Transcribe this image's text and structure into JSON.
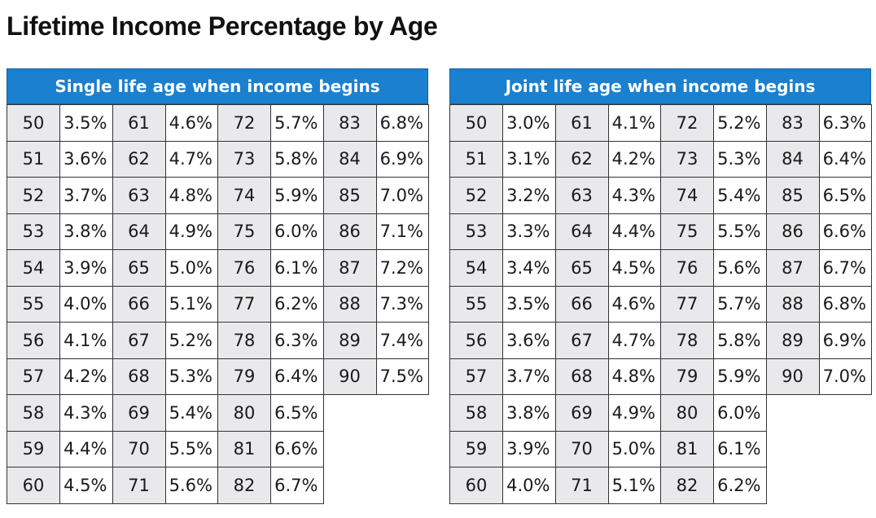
{
  "title": "Lifetime Income Percentage by Age",
  "tables": [
    {
      "header": "Single life age when income begins",
      "rows": [
        [
          [
            "50",
            "3.5%"
          ],
          [
            "61",
            "4.6%"
          ],
          [
            "72",
            "5.7%"
          ],
          [
            "83",
            "6.8%"
          ]
        ],
        [
          [
            "51",
            "3.6%"
          ],
          [
            "62",
            "4.7%"
          ],
          [
            "73",
            "5.8%"
          ],
          [
            "84",
            "6.9%"
          ]
        ],
        [
          [
            "52",
            "3.7%"
          ],
          [
            "63",
            "4.8%"
          ],
          [
            "74",
            "5.9%"
          ],
          [
            "85",
            "7.0%"
          ]
        ],
        [
          [
            "53",
            "3.8%"
          ],
          [
            "64",
            "4.9%"
          ],
          [
            "75",
            "6.0%"
          ],
          [
            "86",
            "7.1%"
          ]
        ],
        [
          [
            "54",
            "3.9%"
          ],
          [
            "65",
            "5.0%"
          ],
          [
            "76",
            "6.1%"
          ],
          [
            "87",
            "7.2%"
          ]
        ],
        [
          [
            "55",
            "4.0%"
          ],
          [
            "66",
            "5.1%"
          ],
          [
            "77",
            "6.2%"
          ],
          [
            "88",
            "7.3%"
          ]
        ],
        [
          [
            "56",
            "4.1%"
          ],
          [
            "67",
            "5.2%"
          ],
          [
            "78",
            "6.3%"
          ],
          [
            "89",
            "7.4%"
          ]
        ],
        [
          [
            "57",
            "4.2%"
          ],
          [
            "68",
            "5.3%"
          ],
          [
            "79",
            "6.4%"
          ],
          [
            "90",
            "7.5%"
          ]
        ],
        [
          [
            "58",
            "4.3%"
          ],
          [
            "69",
            "5.4%"
          ],
          [
            "80",
            "6.5%"
          ]
        ],
        [
          [
            "59",
            "4.4%"
          ],
          [
            "70",
            "5.5%"
          ],
          [
            "81",
            "6.6%"
          ]
        ],
        [
          [
            "60",
            "4.5%"
          ],
          [
            "71",
            "5.6%"
          ],
          [
            "82",
            "6.7%"
          ]
        ]
      ]
    },
    {
      "header": "Joint life age when income begins",
      "rows": [
        [
          [
            "50",
            "3.0%"
          ],
          [
            "61",
            "4.1%"
          ],
          [
            "72",
            "5.2%"
          ],
          [
            "83",
            "6.3%"
          ]
        ],
        [
          [
            "51",
            "3.1%"
          ],
          [
            "62",
            "4.2%"
          ],
          [
            "73",
            "5.3%"
          ],
          [
            "84",
            "6.4%"
          ]
        ],
        [
          [
            "52",
            "3.2%"
          ],
          [
            "63",
            "4.3%"
          ],
          [
            "74",
            "5.4%"
          ],
          [
            "85",
            "6.5%"
          ]
        ],
        [
          [
            "53",
            "3.3%"
          ],
          [
            "64",
            "4.4%"
          ],
          [
            "75",
            "5.5%"
          ],
          [
            "86",
            "6.6%"
          ]
        ],
        [
          [
            "54",
            "3.4%"
          ],
          [
            "65",
            "4.5%"
          ],
          [
            "76",
            "5.6%"
          ],
          [
            "87",
            "6.7%"
          ]
        ],
        [
          [
            "55",
            "3.5%"
          ],
          [
            "66",
            "4.6%"
          ],
          [
            "77",
            "5.7%"
          ],
          [
            "88",
            "6.8%"
          ]
        ],
        [
          [
            "56",
            "3.6%"
          ],
          [
            "67",
            "4.7%"
          ],
          [
            "78",
            "5.8%"
          ],
          [
            "89",
            "6.9%"
          ]
        ],
        [
          [
            "57",
            "3.7%"
          ],
          [
            "68",
            "4.8%"
          ],
          [
            "79",
            "5.9%"
          ],
          [
            "90",
            "7.0%"
          ]
        ],
        [
          [
            "58",
            "3.8%"
          ],
          [
            "69",
            "4.9%"
          ],
          [
            "80",
            "6.0%"
          ]
        ],
        [
          [
            "59",
            "3.9%"
          ],
          [
            "70",
            "5.0%"
          ],
          [
            "81",
            "6.1%"
          ]
        ],
        [
          [
            "60",
            "4.0%"
          ],
          [
            "71",
            "5.1%"
          ],
          [
            "82",
            "6.2%"
          ]
        ]
      ]
    }
  ],
  "colors": {
    "header_bg": "#1a80cf",
    "age_cell_bg": "#e9e9eb",
    "border": "#333333"
  }
}
